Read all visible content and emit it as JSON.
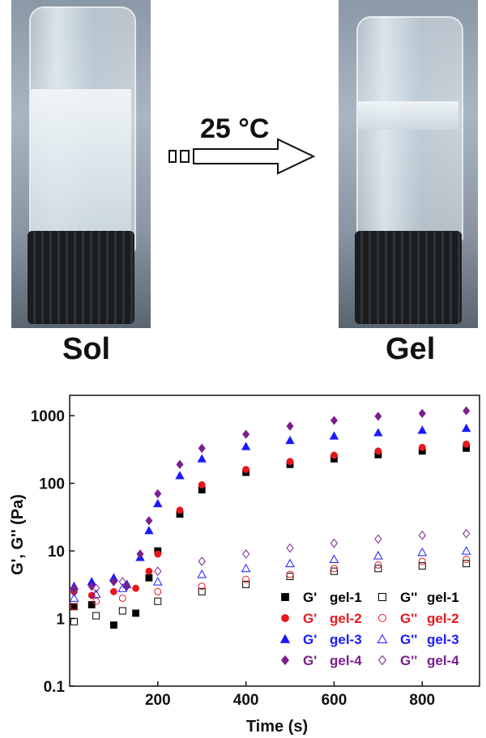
{
  "photos": {
    "left_label": "Sol",
    "right_label": "Gel",
    "arrow_label": "25 °C"
  },
  "chart_data": {
    "type": "scatter",
    "xlabel": "Time (s)",
    "ylabel": "G', G'' (Pa)",
    "xlim": [
      0,
      930
    ],
    "ylim": [
      0.1,
      2000
    ],
    "yscale": "log",
    "x_ticks": [
      200,
      400,
      600,
      800
    ],
    "y_ticks": [
      0.1,
      1,
      10,
      100,
      1000
    ],
    "y_tick_labels": [
      "0.1",
      "1",
      "10",
      "100",
      "1000"
    ],
    "x_tick_labels": [
      "200",
      "400",
      "600",
      "800"
    ],
    "legend_position": "lower-right",
    "colors": {
      "gel-1": "#000000",
      "gel-2": "#e8171c",
      "gel-3": "#1a1aff",
      "gel-4": "#7a1f8c"
    },
    "series": [
      {
        "name": "G'",
        "sample": "gel-1",
        "marker": "square-filled",
        "color": "#000000",
        "x": [
          10,
          50,
          100,
          150,
          180,
          200,
          250,
          300,
          400,
          500,
          600,
          700,
          800,
          900
        ],
        "y": [
          1.5,
          1.6,
          0.8,
          1.2,
          4,
          10,
          35,
          80,
          145,
          190,
          230,
          265,
          300,
          330
        ]
      },
      {
        "name": "G'",
        "sample": "gel-2",
        "marker": "circle-filled",
        "color": "#e8171c",
        "x": [
          10,
          50,
          100,
          150,
          180,
          200,
          250,
          300,
          400,
          500,
          600,
          700,
          800,
          900
        ],
        "y": [
          2.5,
          2.2,
          2.5,
          2.8,
          5,
          9,
          40,
          95,
          160,
          210,
          260,
          300,
          340,
          380
        ]
      },
      {
        "name": "G'",
        "sample": "gel-3",
        "marker": "triangle-filled",
        "color": "#1a1aff",
        "x": [
          10,
          50,
          100,
          130,
          160,
          180,
          200,
          250,
          300,
          400,
          500,
          600,
          700,
          800,
          900
        ],
        "y": [
          3,
          3.5,
          4,
          3.2,
          8,
          20,
          50,
          130,
          230,
          350,
          430,
          500,
          560,
          610,
          650
        ]
      },
      {
        "name": "G'",
        "sample": "gel-4",
        "marker": "diamond-filled",
        "color": "#7a1f8c",
        "x": [
          10,
          50,
          100,
          130,
          160,
          180,
          200,
          250,
          300,
          400,
          500,
          600,
          700,
          800,
          900
        ],
        "y": [
          2.8,
          3,
          3.5,
          3,
          9,
          28,
          70,
          190,
          330,
          530,
          700,
          850,
          980,
          1080,
          1180
        ]
      },
      {
        "name": "G''",
        "sample": "gel-1",
        "marker": "square-open",
        "color": "#000000",
        "x": [
          10,
          60,
          120,
          200,
          300,
          400,
          500,
          600,
          700,
          800,
          900
        ],
        "y": [
          0.9,
          1.1,
          1.3,
          1.8,
          2.5,
          3.2,
          4.2,
          5,
          5.5,
          6,
          6.5
        ]
      },
      {
        "name": "G''",
        "sample": "gel-2",
        "marker": "circle-open",
        "color": "#e8171c",
        "x": [
          10,
          60,
          120,
          200,
          300,
          400,
          500,
          600,
          700,
          800,
          900
        ],
        "y": [
          1.5,
          1.8,
          2,
          2.5,
          3,
          3.8,
          4.5,
          5.5,
          6.2,
          7,
          7.5
        ]
      },
      {
        "name": "G''",
        "sample": "gel-3",
        "marker": "triangle-open",
        "color": "#1a1aff",
        "x": [
          10,
          60,
          120,
          200,
          300,
          400,
          500,
          600,
          700,
          800,
          900
        ],
        "y": [
          2,
          2.3,
          2.8,
          3.5,
          4.5,
          5.5,
          6.5,
          7.5,
          8.5,
          9.5,
          10
        ]
      },
      {
        "name": "G''",
        "sample": "gel-4",
        "marker": "diamond-open",
        "color": "#7a1f8c",
        "x": [
          10,
          60,
          120,
          200,
          300,
          400,
          500,
          600,
          700,
          800,
          900
        ],
        "y": [
          2.5,
          2.8,
          3.5,
          5,
          7,
          9,
          11,
          13,
          15,
          17,
          18
        ]
      }
    ],
    "legend": [
      {
        "symbol": "G'",
        "label": "gel-1",
        "marker": "square-filled",
        "color": "#000000"
      },
      {
        "symbol": "G''",
        "label": "gel-1",
        "marker": "square-open",
        "color": "#000000"
      },
      {
        "symbol": "G'",
        "label": "gel-2",
        "marker": "circle-filled",
        "color": "#e8171c"
      },
      {
        "symbol": "G''",
        "label": "gel-2",
        "marker": "circle-open",
        "color": "#e8171c"
      },
      {
        "symbol": "G'",
        "label": "gel-3",
        "marker": "triangle-filled",
        "color": "#1a1aff"
      },
      {
        "symbol": "G''",
        "label": "gel-3",
        "marker": "triangle-open",
        "color": "#1a1aff"
      },
      {
        "symbol": "G'",
        "label": "gel-4",
        "marker": "diamond-filled",
        "color": "#7a1f8c"
      },
      {
        "symbol": "G''",
        "label": "gel-4",
        "marker": "diamond-open",
        "color": "#7a1f8c"
      }
    ]
  }
}
